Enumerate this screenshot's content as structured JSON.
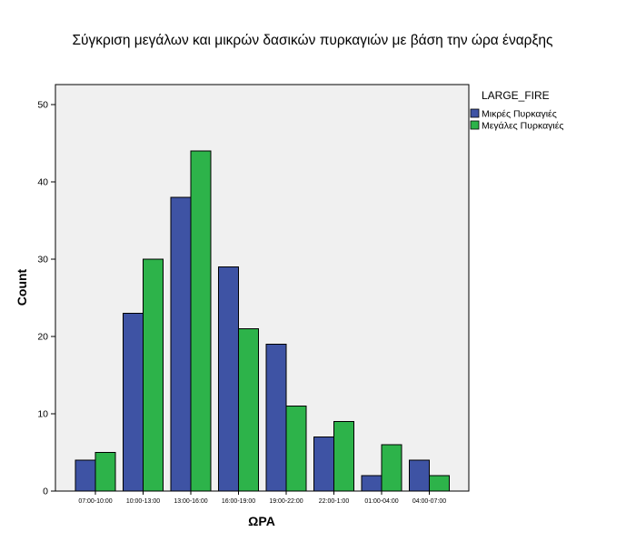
{
  "chart_data": {
    "type": "bar",
    "title": "Σύγκριση μεγάλων και μικρών δασικών πυρκαγιών με βάση την ώρα έναρξης",
    "xlabel": "ΩΡΑ",
    "ylabel": "Count",
    "ylim": [
      0,
      50
    ],
    "yticks": [
      0,
      10,
      20,
      30,
      40,
      50
    ],
    "grid": false,
    "legend_position": "right",
    "legend_title": "LARGE_FIRE",
    "categories": [
      "07:00-10:00",
      "10:00-13:00",
      "13:00-16:00",
      "16:00-19:00",
      "19:00-22:00",
      "22:00-1:00",
      "01:00-04:00",
      "04:00-07:00"
    ],
    "series": [
      {
        "name": "Μικρές Πυρκαγιές",
        "color": "#3E53A4",
        "values": [
          4,
          23,
          38,
          29,
          19,
          7,
          2,
          4
        ]
      },
      {
        "name": "Μεγάλες Πυρκαγιές",
        "color": "#2DB34A",
        "values": [
          5,
          30,
          44,
          21,
          11,
          9,
          6,
          2
        ]
      }
    ],
    "plot_background": "#F0F0F0"
  }
}
